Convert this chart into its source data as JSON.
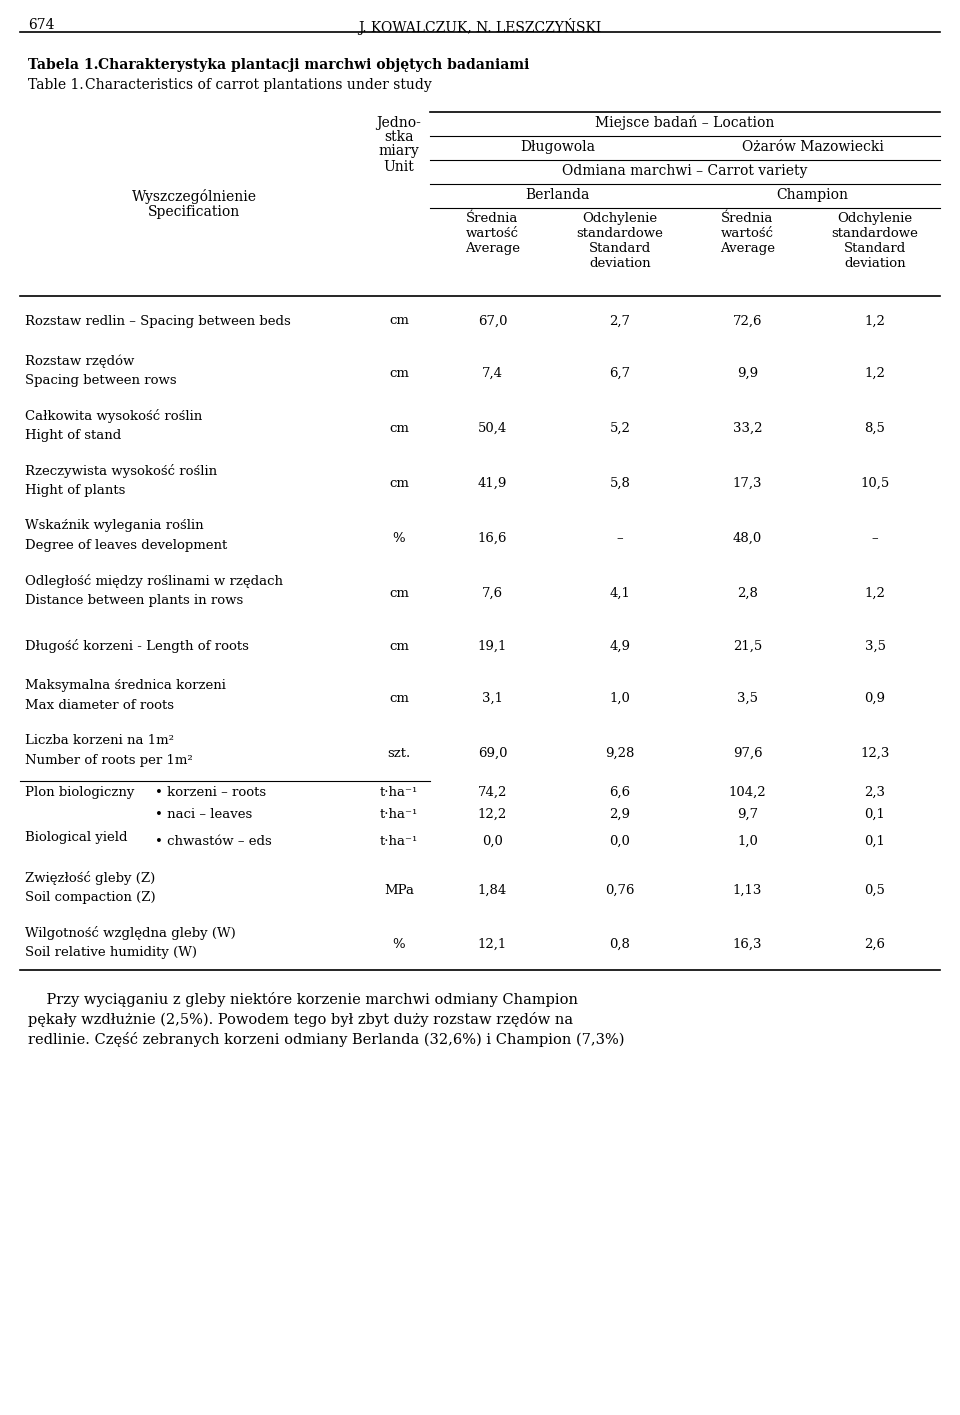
{
  "page_number": "674",
  "page_header": "J. KOWALCZUK, N. LESZCZYŃSKI",
  "title_bold": "Tabela 1.",
  "title_bold_text": "Charakterystyka plantacji marchwi objętych badaniami",
  "title_normal": "Table 1.",
  "title_normal_text": "Characteristics of carrot plantations under study",
  "col_header_location": "Miejsce badań – Location",
  "col_header_dlugowola": "Długowola",
  "col_header_ozarow": "Żarów Mazowiecki",
  "col_header_odmiana": "Odmiana marchwi – Carrot variety",
  "col_header_berlanda": "Berlanda",
  "col_header_champion": "Champion",
  "rows": [
    {
      "spec_line1": "Rozstaw redlin – Spacing between beds",
      "spec_line2": "",
      "unit": "cm",
      "b_avg": "67,0",
      "b_std": "2,7",
      "c_avg": "72,6",
      "c_std": "1,2",
      "two_line": false,
      "bullet": false,
      "has_top_line": false
    },
    {
      "spec_line1": "Rozstaw rzędów",
      "spec_line2": "Spacing between rows",
      "unit": "cm",
      "b_avg": "7,4",
      "b_std": "6,7",
      "c_avg": "9,9",
      "c_std": "1,2",
      "two_line": true,
      "bullet": false,
      "has_top_line": false
    },
    {
      "spec_line1": "Całkowita wysokość roślin",
      "spec_line2": "Hight of stand",
      "unit": "cm",
      "b_avg": "50,4",
      "b_std": "5,2",
      "c_avg": "33,2",
      "c_std": "8,5",
      "two_line": true,
      "bullet": false,
      "has_top_line": false
    },
    {
      "spec_line1": "Rzeczywista wysokość roślin",
      "spec_line2": "Hight of plants",
      "unit": "cm",
      "b_avg": "41,9",
      "b_std": "5,8",
      "c_avg": "17,3",
      "c_std": "10,5",
      "two_line": true,
      "bullet": false,
      "has_top_line": false
    },
    {
      "spec_line1": "Wskaźnik wylegania roślin",
      "spec_line2": "Degree of leaves development",
      "unit": "%",
      "b_avg": "16,6",
      "b_std": "–",
      "c_avg": "48,0",
      "c_std": "–",
      "two_line": true,
      "bullet": false,
      "has_top_line": false
    },
    {
      "spec_line1": "Odległość między roślinami w rzędach",
      "spec_line2": "Distance between plants in rows",
      "unit": "cm",
      "b_avg": "7,6",
      "b_std": "4,1",
      "c_avg": "2,8",
      "c_std": "1,2",
      "two_line": true,
      "bullet": false,
      "has_top_line": false
    },
    {
      "spec_line1": "Długość korzeni - Length of roots",
      "spec_line2": "",
      "unit": "cm",
      "b_avg": "19,1",
      "b_std": "4,9",
      "c_avg": "21,5",
      "c_std": "3,5",
      "two_line": false,
      "bullet": false,
      "has_top_line": false
    },
    {
      "spec_line1": "Maksymalna średnica korzeni",
      "spec_line2": "Max diameter of roots",
      "unit": "cm",
      "b_avg": "3,1",
      "b_std": "1,0",
      "c_avg": "3,5",
      "c_std": "0,9",
      "two_line": true,
      "bullet": false,
      "has_top_line": false
    },
    {
      "spec_line1": "Liczba korzeni na 1m²",
      "spec_line2": "Number of roots per 1m²",
      "unit": "szt.",
      "b_avg": "69,0",
      "b_std": "9,28",
      "c_avg": "97,6",
      "c_std": "12,3",
      "two_line": true,
      "bullet": false,
      "has_top_line": false
    },
    {
      "spec_line1": "Plon biologiczny",
      "spec_line1b": "• korzeni – roots",
      "spec_line2": "Biological yield",
      "spec_line2b": "• naci – leaves",
      "spec_line3b": "• chwastów – eds",
      "unit": "t·ha⁻¹",
      "unit2": "t·ha⁻¹",
      "unit3": "t·ha⁻¹",
      "b_avg": "74,2",
      "b_std": "6,6",
      "c_avg": "104,2",
      "c_std": "2,3",
      "b_avg2": "12,2",
      "b_std2": "2,9",
      "c_avg2": "9,7",
      "c_std2": "0,1",
      "b_avg3": "0,0",
      "b_std3": "0,0",
      "c_avg3": "1,0",
      "c_std3": "0,1",
      "two_line": true,
      "bullet": true,
      "has_top_line": true
    },
    {
      "spec_line1": "Zwięzłość gleby (Z)",
      "spec_line2": "Soil compaction (Z)",
      "unit": "MPa",
      "b_avg": "1,84",
      "b_std": "0,76",
      "c_avg": "1,13",
      "c_std": "0,5",
      "two_line": true,
      "bullet": false,
      "has_top_line": false
    },
    {
      "spec_line1": "Wilgotność względna gleby (W)",
      "spec_line2": "Soil relative humidity (W)",
      "unit": "%",
      "b_avg": "12,1",
      "b_std": "0,8",
      "c_avg": "16,3",
      "c_std": "2,6",
      "two_line": true,
      "bullet": false,
      "has_top_line": false
    }
  ],
  "footer_line1": "    Przy wyciąganiu z gleby niektóre korzenie marchwi odmiany Champion",
  "footer_line2": "pękały wzdłużnie (2,5%). Powodem tego był zbyt duży rozstaw rzędów na",
  "footer_line3": "redlinie. Część zebranych korzeni odmiany Berlanda (32,6%) i Champion (7,3%)"
}
